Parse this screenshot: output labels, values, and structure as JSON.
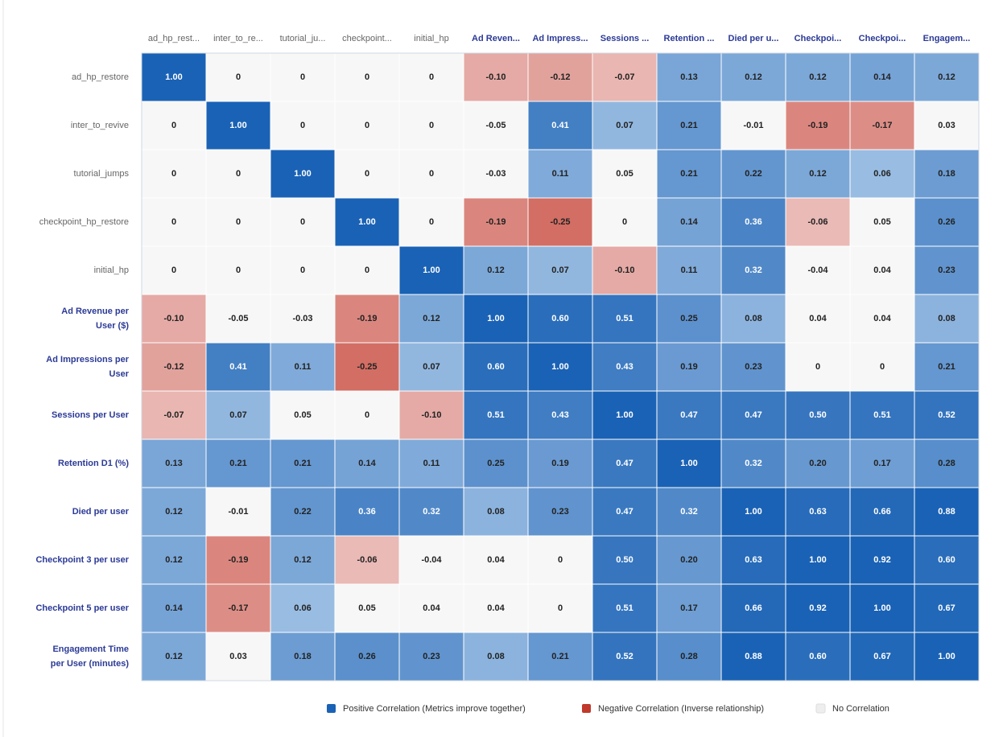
{
  "chart_data": {
    "type": "heatmap",
    "columns": [
      "ad_hp_rest...",
      "inter_to_re...",
      "tutorial_ju...",
      "checkpoint...",
      "initial_hp",
      "Ad Reven...",
      "Ad Impress...",
      "Sessions ...",
      "Retention ...",
      "Died per u...",
      "Checkpoi...",
      "Checkpoi...",
      "Engagem..."
    ],
    "rows": [
      "ad_hp_restore",
      "inter_to_revive",
      "tutorial_jumps",
      "checkpoint_hp_restore",
      "initial_hp",
      "Ad Revenue per User ($)",
      "Ad Impressions per User",
      "Sessions per User",
      "Retention D1 (%)",
      "Died per user",
      "Checkpoint 3 per user",
      "Checkpoint 5 per user",
      "Engagement Time per User (minutes)"
    ],
    "values": [
      [
        1,
        0,
        0,
        0,
        0,
        -0.1,
        -0.12,
        -0.07,
        0.13,
        0.12,
        0.12,
        0.14,
        0.12
      ],
      [
        0,
        1,
        0,
        0,
        0,
        -0.05,
        0.41,
        0.07,
        0.21,
        -0.01,
        -0.19,
        -0.17,
        0.03
      ],
      [
        0,
        0,
        1,
        0,
        0,
        -0.03,
        0.11,
        0.05,
        0.21,
        0.22,
        0.12,
        0.06,
        0.18
      ],
      [
        0,
        0,
        0,
        1,
        0,
        -0.19,
        -0.25,
        0,
        0.14,
        0.36,
        -0.06,
        0.05,
        0.26
      ],
      [
        0,
        0,
        0,
        0,
        1,
        0.12,
        0.07,
        -0.1,
        0.11,
        0.32,
        -0.04,
        0.04,
        0.23
      ],
      [
        -0.1,
        -0.05,
        -0.03,
        -0.19,
        0.12,
        1,
        0.6,
        0.51,
        0.25,
        0.08,
        0.04,
        0.04,
        0.08
      ],
      [
        -0.12,
        0.41,
        0.11,
        -0.25,
        0.07,
        0.6,
        1,
        0.43,
        0.19,
        0.23,
        0,
        0,
        0.21
      ],
      [
        -0.07,
        0.07,
        0.05,
        0,
        -0.1,
        0.51,
        0.43,
        1,
        0.47,
        0.47,
        0.5,
        0.51,
        0.52
      ],
      [
        0.13,
        0.21,
        0.21,
        0.14,
        0.11,
        0.25,
        0.19,
        0.47,
        1,
        0.32,
        0.2,
        0.17,
        0.28
      ],
      [
        0.12,
        -0.01,
        0.22,
        0.36,
        0.32,
        0.08,
        0.23,
        0.47,
        0.32,
        1,
        0.63,
        0.66,
        0.88
      ],
      [
        0.12,
        -0.19,
        0.12,
        -0.06,
        -0.04,
        0.04,
        0,
        0.5,
        0.2,
        0.63,
        1,
        0.92,
        0.6
      ],
      [
        0.14,
        -0.17,
        0.06,
        0.05,
        0.04,
        0.04,
        0,
        0.51,
        0.17,
        0.66,
        0.92,
        1,
        0.67
      ],
      [
        0.12,
        0.03,
        0.18,
        0.26,
        0.23,
        0.08,
        0.21,
        0.52,
        0.28,
        0.88,
        0.6,
        0.67,
        1
      ]
    ],
    "value_labels": [
      [
        "1.00",
        "0",
        "0",
        "0",
        "0",
        "-0.10",
        "-0.12",
        "-0.07",
        "0.13",
        "0.12",
        "0.12",
        "0.14",
        "0.12"
      ],
      [
        "0",
        "1.00",
        "0",
        "0",
        "0",
        "-0.05",
        "0.41",
        "0.07",
        "0.21",
        "-0.01",
        "-0.19",
        "-0.17",
        "0.03"
      ],
      [
        "0",
        "0",
        "1.00",
        "0",
        "0",
        "-0.03",
        "0.11",
        "0.05",
        "0.21",
        "0.22",
        "0.12",
        "0.06",
        "0.18"
      ],
      [
        "0",
        "0",
        "0",
        "1.00",
        "0",
        "-0.19",
        "-0.25",
        "0",
        "0.14",
        "0.36",
        "-0.06",
        "0.05",
        "0.26"
      ],
      [
        "0",
        "0",
        "0",
        "0",
        "1.00",
        "0.12",
        "0.07",
        "-0.10",
        "0.11",
        "0.32",
        "-0.04",
        "0.04",
        "0.23"
      ],
      [
        "-0.10",
        "-0.05",
        "-0.03",
        "-0.19",
        "0.12",
        "1.00",
        "0.60",
        "0.51",
        "0.25",
        "0.08",
        "0.04",
        "0.04",
        "0.08"
      ],
      [
        "-0.12",
        "0.41",
        "0.11",
        "-0.25",
        "0.07",
        "0.60",
        "1.00",
        "0.43",
        "0.19",
        "0.23",
        "0",
        "0",
        "0.21"
      ],
      [
        "-0.07",
        "0.07",
        "0.05",
        "0",
        "-0.10",
        "0.51",
        "0.43",
        "1.00",
        "0.47",
        "0.47",
        "0.50",
        "0.51",
        "0.52"
      ],
      [
        "0.13",
        "0.21",
        "0.21",
        "0.14",
        "0.11",
        "0.25",
        "0.19",
        "0.47",
        "1.00",
        "0.32",
        "0.20",
        "0.17",
        "0.28"
      ],
      [
        "0.12",
        "-0.01",
        "0.22",
        "0.36",
        "0.32",
        "0.08",
        "0.23",
        "0.47",
        "0.32",
        "1.00",
        "0.63",
        "0.66",
        "0.88"
      ],
      [
        "0.12",
        "-0.19",
        "0.12",
        "-0.06",
        "-0.04",
        "0.04",
        "0",
        "0.50",
        "0.20",
        "0.63",
        "1.00",
        "0.92",
        "0.60"
      ],
      [
        "0.14",
        "-0.17",
        "0.06",
        "0.05",
        "0.04",
        "0.04",
        "0",
        "0.51",
        "0.17",
        "0.66",
        "0.92",
        "1.00",
        "0.67"
      ],
      [
        "0.12",
        "0.03",
        "0.18",
        "0.26",
        "0.23",
        "0.08",
        "0.21",
        "0.52",
        "0.28",
        "0.88",
        "0.60",
        "0.67",
        "1.00"
      ]
    ],
    "legend": [
      {
        "name": "Positive Correlation (Metrics improve together)",
        "color": "#1a62b5"
      },
      {
        "name": "Negative Correlation (Inverse relationship)",
        "color": "#c0392b"
      },
      {
        "name": "No Correlation",
        "color": "#eeeeee"
      }
    ]
  }
}
